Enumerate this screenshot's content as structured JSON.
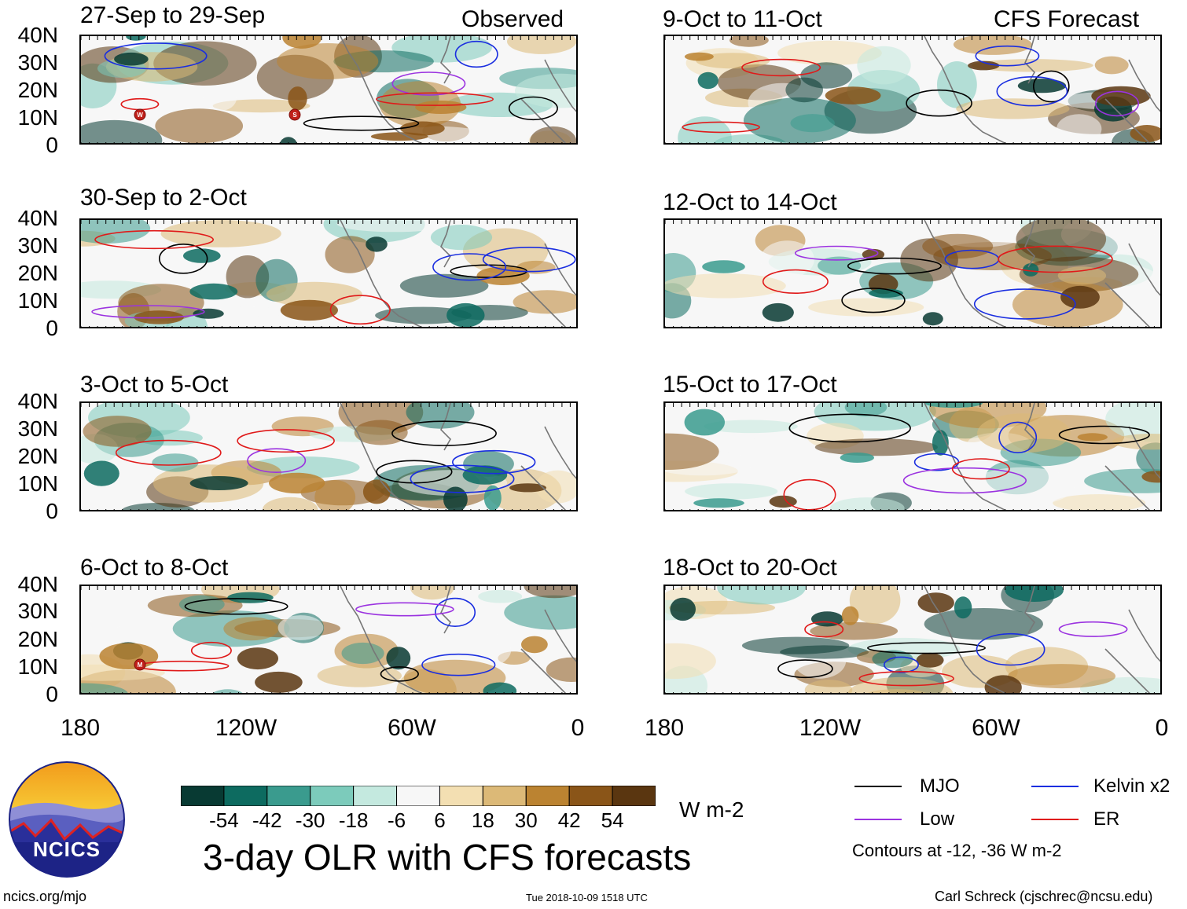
{
  "header": {
    "left_label": "Observed",
    "right_label": "CFS Forecast"
  },
  "panels": [
    {
      "title": "27-Sep to 29-Sep",
      "group": "observed",
      "storms": [
        "W",
        "S"
      ]
    },
    {
      "title": "30-Sep to 2-Oct",
      "group": "observed",
      "storms": []
    },
    {
      "title": "3-Oct to 5-Oct",
      "group": "observed",
      "storms": []
    },
    {
      "title": "6-Oct to 8-Oct",
      "group": "observed",
      "storms": [
        "M"
      ]
    },
    {
      "title": "9-Oct to 11-Oct",
      "group": "forecast",
      "storms": []
    },
    {
      "title": "12-Oct to 14-Oct",
      "group": "forecast",
      "storms": []
    },
    {
      "title": "15-Oct to 17-Oct",
      "group": "forecast",
      "storms": []
    },
    {
      "title": "18-Oct to 20-Oct",
      "group": "forecast",
      "storms": []
    }
  ],
  "axes": {
    "lat_labels": [
      "40N",
      "30N",
      "20N",
      "10N",
      "0"
    ],
    "lon_labels": [
      "180",
      "120W",
      "60W",
      "0"
    ]
  },
  "colorbar": {
    "colors": [
      "#083a33",
      "#0d6b60",
      "#3a9b8e",
      "#7ccbbb",
      "#c4e9df",
      "#f7f7f7",
      "#f3dfb2",
      "#dcb977",
      "#bb8331",
      "#8a5518",
      "#5a3610"
    ],
    "tick_labels": [
      "-54",
      "-42",
      "-30",
      "-18",
      "-6",
      "6",
      "18",
      "30",
      "42",
      "54"
    ],
    "units": "W m-2"
  },
  "main_title": "3-day OLR with CFS forecasts",
  "legend": {
    "items": [
      {
        "label": "MJO",
        "color": "#000000"
      },
      {
        "label": "Kelvin x2",
        "color": "#1a2ee0"
      },
      {
        "label": "Low",
        "color": "#9b33e0"
      },
      {
        "label": "ER",
        "color": "#e01a1a"
      }
    ],
    "contour_note": "Contours at -12, -36 W m-2"
  },
  "logo": {
    "text": "NCICS"
  },
  "footer": {
    "website": "ncics.org/mjo",
    "timestamp": "Tue 2018-10-09 1518 UTC",
    "author": "Carl Schreck (cjschrec@ncsu.edu)"
  }
}
